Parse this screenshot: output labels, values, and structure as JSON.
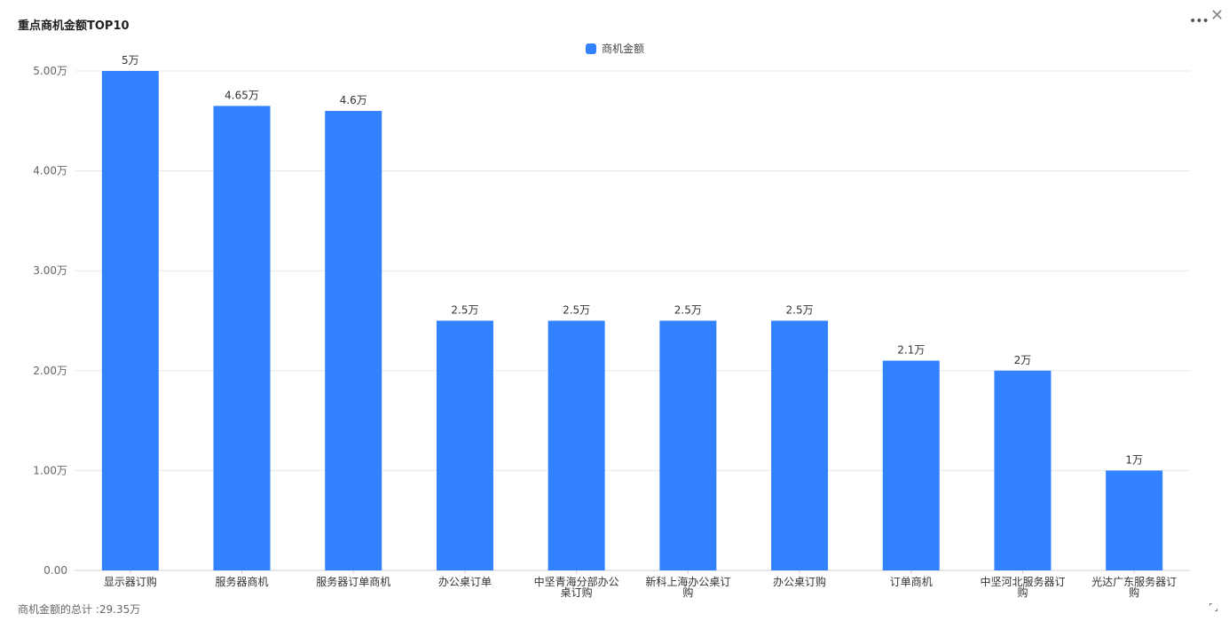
{
  "title": "重点商机金额TOP10",
  "footer": "商机金额的总计 :29.35万",
  "icons": {
    "more": "more-icon",
    "close": "close-icon",
    "resize": "resize-icon"
  },
  "colors": {
    "bar": "#3282FF",
    "grid": "#E8E8E8"
  },
  "chart_data": {
    "type": "bar",
    "title": "重点商机金额TOP10",
    "categories": [
      [
        "显示器订购"
      ],
      [
        "服务器商机"
      ],
      [
        "服务器订单商机"
      ],
      [
        "办公桌订单"
      ],
      [
        "中坚青海分部办公",
        "桌订购"
      ],
      [
        "新科上海办公桌订",
        "购"
      ],
      [
        "办公桌订购"
      ],
      [
        "订单商机"
      ],
      [
        "中坚河北服务器订",
        "购"
      ],
      [
        "光达广东服务器订",
        "购"
      ]
    ],
    "series": [
      {
        "name": "商机金额",
        "values": [
          50000,
          46500,
          46000,
          25000,
          25000,
          25000,
          25000,
          21000,
          20000,
          10000
        ],
        "labels": [
          "5万",
          "4.65万",
          "4.6万",
          "2.5万",
          "2.5万",
          "2.5万",
          "2.5万",
          "2.1万",
          "2万",
          "1万"
        ]
      }
    ],
    "yticks": [
      0,
      10000,
      20000,
      30000,
      40000,
      50000
    ],
    "ytick_labels": [
      "0.00",
      "1.00万",
      "2.00万",
      "3.00万",
      "4.00万",
      "5.00万"
    ],
    "ylim": [
      0,
      50000
    ],
    "grid": true,
    "legend_position": "top-center"
  }
}
